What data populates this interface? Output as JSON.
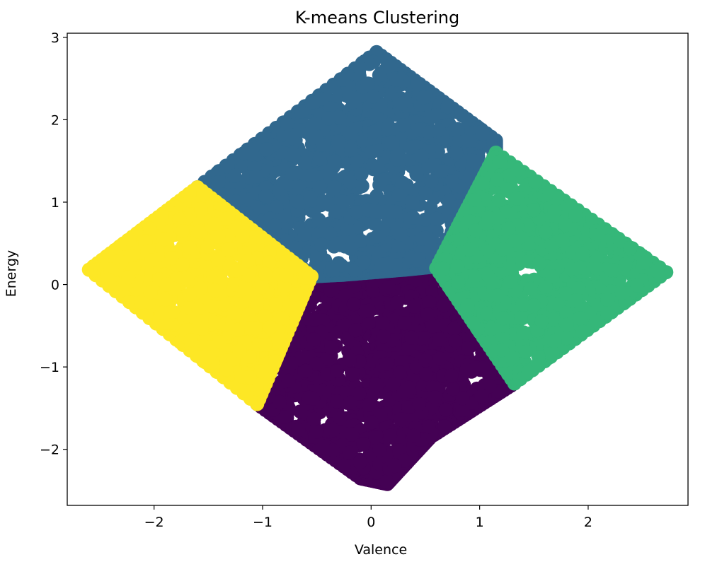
{
  "chart_data": {
    "type": "scatter",
    "title": "K-means Clustering",
    "xlabel": "Valence",
    "ylabel": "Energy",
    "xlim": [
      -2.8,
      2.92
    ],
    "ylim": [
      -2.68,
      3.05
    ],
    "xticks": [
      -2,
      -1,
      0,
      1,
      2
    ],
    "yticks": [
      -2,
      -1,
      0,
      1,
      2,
      3
    ],
    "xtick_labels": [
      "−2",
      "−1",
      "0",
      "1",
      "2"
    ],
    "ytick_labels": [
      "−2",
      "−1",
      "0",
      "1",
      "2",
      "3"
    ],
    "grid": false,
    "legend": "none",
    "marker": "circle",
    "series": [
      {
        "cluster": 0,
        "color": "#440154",
        "region": [
          [
            -0.55,
            0.1
          ],
          [
            -0.25,
            0.12
          ],
          [
            0.3,
            0.18
          ],
          [
            0.6,
            0.2
          ],
          [
            1.32,
            -1.2
          ],
          [
            0.55,
            -1.85
          ],
          [
            0.15,
            -2.42
          ],
          [
            -0.1,
            -2.35
          ],
          [
            -1.05,
            -1.45
          ]
        ]
      },
      {
        "cluster": 1,
        "color": "#31688e",
        "region": [
          [
            -1.6,
            1.18
          ],
          [
            0.05,
            2.82
          ],
          [
            1.15,
            1.75
          ],
          [
            1.15,
            1.6
          ],
          [
            0.6,
            0.22
          ],
          [
            0.3,
            0.18
          ],
          [
            -0.25,
            0.12
          ],
          [
            -0.55,
            0.1
          ]
        ]
      },
      {
        "cluster": 2,
        "color": "#35b779",
        "region": [
          [
            1.15,
            1.6
          ],
          [
            2.72,
            0.15
          ],
          [
            1.32,
            -1.2
          ],
          [
            0.6,
            0.2
          ]
        ]
      },
      {
        "cluster": 3,
        "color": "#fde725",
        "region": [
          [
            -1.6,
            1.18
          ],
          [
            -2.6,
            0.18
          ],
          [
            -1.05,
            -1.45
          ],
          [
            -0.55,
            0.1
          ]
        ]
      }
    ]
  }
}
